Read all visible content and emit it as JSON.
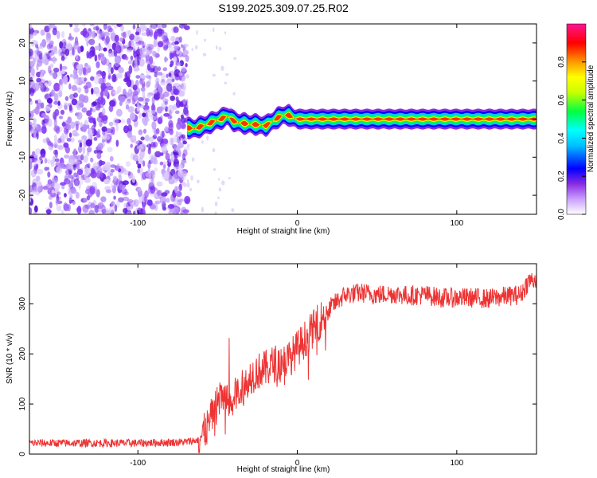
{
  "figure_title": "S199.2025.309.07.25.R02",
  "chart_data": [
    {
      "type": "heatmap",
      "title": "S199.2025.309.07.25.R02",
      "xlabel": "Height of straight line (km)",
      "ylabel": "Frequency (Hz)",
      "xlim": [
        -168,
        150
      ],
      "ylim": [
        -25,
        25
      ],
      "xticks": [
        -100,
        0,
        100
      ],
      "yticks": [
        -20,
        -10,
        0,
        10,
        20
      ],
      "noise_region_x": [
        -168,
        -69
      ],
      "ridge": {
        "x": [
          -69,
          -64,
          -61,
          -57,
          -52,
          -48,
          -44,
          -40,
          -36,
          -30,
          -24,
          -20,
          -17,
          -13,
          -9,
          -5,
          -2,
          0,
          20,
          40,
          60,
          80,
          100,
          120,
          150
        ],
        "freq": [
          -2.3,
          -2.5,
          -2.0,
          -1.5,
          -0.5,
          0.0,
          0.8,
          -0.5,
          -1.0,
          -1.3,
          -1.5,
          -1.8,
          -1.0,
          0.2,
          1.0,
          1.0,
          0.3,
          0.0,
          0.0,
          0.0,
          0.0,
          0.0,
          0.0,
          0.0,
          0.0
        ]
      },
      "colorbar": {
        "label": "Normalized spectral amplitude",
        "range": [
          0.0,
          1.0
        ],
        "ticks": [
          0.0,
          0.2,
          0.4,
          0.6,
          0.8
        ],
        "tick_labels": [
          "0.0",
          "0.2",
          "0.4",
          "0.6",
          "0.8"
        ],
        "colors": [
          "#ffffff",
          "#8a2be2",
          "#0000ff",
          "#00ffff",
          "#00ff00",
          "#ffff00",
          "#ff7f00",
          "#ff0000",
          "#ff1493"
        ]
      }
    },
    {
      "type": "line",
      "title": "",
      "xlabel": "Height of straight line (km)",
      "ylabel": "SNR (10 * v/v)",
      "xlim": [
        -168,
        150
      ],
      "ylim": [
        0,
        380
      ],
      "xticks": [
        -100,
        0,
        100
      ],
      "yticks": [
        0,
        100,
        200,
        300
      ],
      "color": "#ee3333",
      "series": [
        {
          "name": "SNR",
          "x": [
            -168,
            -140,
            -100,
            -70,
            -62,
            -56,
            -52,
            -47,
            -43,
            -40,
            -35,
            -30,
            -25,
            -20,
            -15,
            -10,
            -5,
            0,
            5,
            10,
            15,
            20,
            25,
            30,
            40,
            50,
            60,
            70,
            80,
            90,
            100,
            110,
            120,
            130,
            140,
            145,
            150
          ],
          "y": [
            22,
            22,
            22,
            24,
            28,
            55,
            90,
            115,
            100,
            110,
            135,
            155,
            165,
            170,
            180,
            185,
            190,
            210,
            230,
            250,
            270,
            290,
            305,
            318,
            322,
            318,
            320,
            316,
            318,
            312,
            312,
            312,
            310,
            315,
            318,
            345,
            350
          ]
        }
      ]
    }
  ]
}
